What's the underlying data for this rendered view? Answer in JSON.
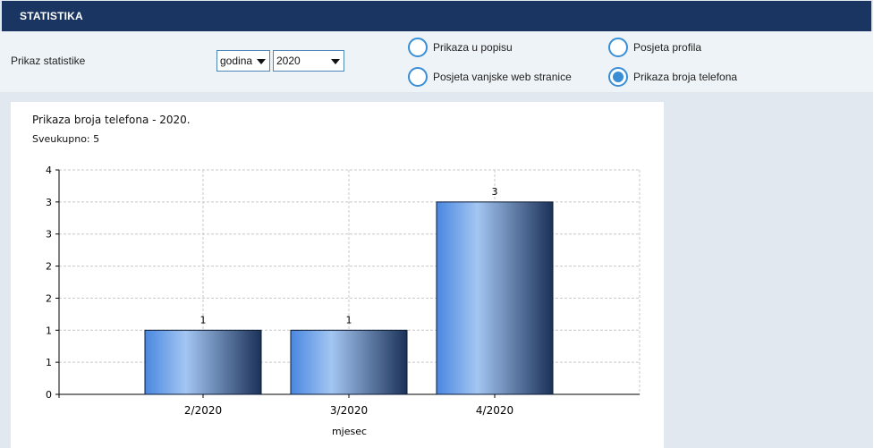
{
  "header": {
    "title": "STATISTIKA"
  },
  "controls": {
    "label": "Prikaz statistike",
    "period_select": {
      "value": "godina"
    },
    "year_select": {
      "value": "2020"
    },
    "radios": [
      {
        "label": "Prikaza u popisu",
        "checked": false
      },
      {
        "label": "Posjeta profila",
        "checked": false
      },
      {
        "label": "Posjeta vanjske web stranice",
        "checked": false
      },
      {
        "label": "Prikaza broja telefona",
        "checked": true
      }
    ]
  },
  "colors": {
    "header": "#1a3561",
    "radio_accent": "#3a8ed6",
    "bar_light": "#a3c6f2",
    "bar_mid": "#4a87e0",
    "bar_dark": "#1b3158"
  },
  "chart_data": {
    "type": "bar",
    "title": "Prikaza broja telefona - 2020.",
    "subtitle": "Sveukupno: 5",
    "xlabel": "mjesec",
    "ylabel": "",
    "categories": [
      "2/2020",
      "3/2020",
      "4/2020"
    ],
    "values": [
      1,
      1,
      3
    ],
    "data_labels": [
      "1",
      "1",
      "3"
    ],
    "ylim": [
      0,
      3.5
    ],
    "y_tick_labels": [
      "0",
      "1",
      "1",
      "2",
      "2",
      "3",
      "3",
      "4"
    ],
    "grid": true,
    "legend": "none"
  }
}
